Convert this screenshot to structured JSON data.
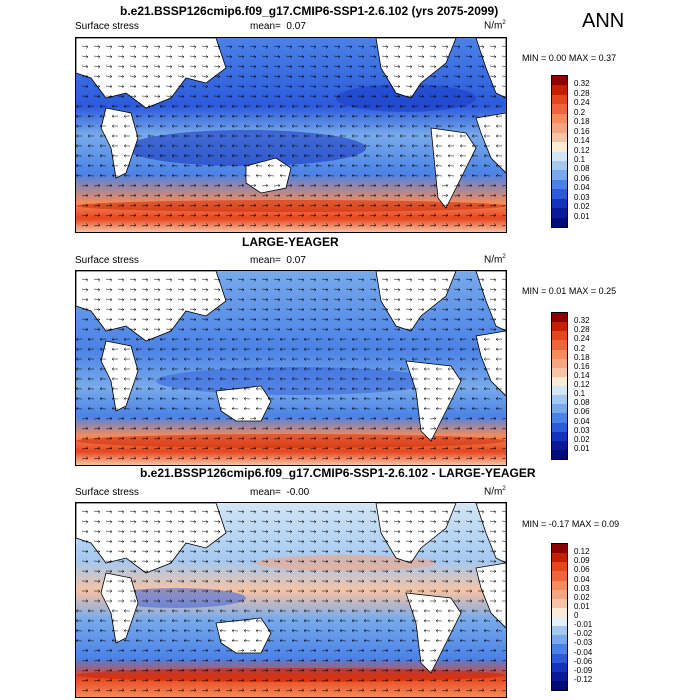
{
  "season": "ANN",
  "units_base": "N/m",
  "units_exp": "2",
  "panels": [
    {
      "title": "b.e21.BSSP126cmip6.f09_g17.CMIP6-SSP1-2.6.102 (yrs 2075-2099)",
      "variable": "Surface stress",
      "mean_label": "mean=",
      "mean": "0.07",
      "min_label": "MIN =",
      "min": "0.00",
      "max_label": "MAX =",
      "max": "0.37",
      "levels": [
        "0.32",
        "0.28",
        "0.24",
        "0.2",
        "0.18",
        "0.16",
        "0.14",
        "0.12",
        "0.1",
        "0.08",
        "0.06",
        "0.04",
        "0.03",
        "0.02",
        "0.01"
      ],
      "colors": [
        "#8c0000",
        "#c81e00",
        "#e6461e",
        "#f0643c",
        "#f58c5a",
        "#f5a582",
        "#f5c3a5",
        "#faebd7",
        "#d2e6f5",
        "#a5c8f0",
        "#78aaeb",
        "#4b82e6",
        "#2d5adc",
        "#1432be",
        "#0a1996",
        "#000a78"
      ]
    },
    {
      "title": "LARGE-YEAGER",
      "variable": "Surface stress",
      "mean_label": "mean=",
      "mean": "0.07",
      "min_label": "MIN =",
      "min": "0.01",
      "max_label": "MAX =",
      "max": "0.25",
      "levels": [
        "0.32",
        "0.28",
        "0.24",
        "0.2",
        "0.18",
        "0.16",
        "0.14",
        "0.12",
        "0.1",
        "0.08",
        "0.06",
        "0.04",
        "0.03",
        "0.02",
        "0.01"
      ],
      "colors": [
        "#8c0000",
        "#c81e00",
        "#e6461e",
        "#f0643c",
        "#f58c5a",
        "#f5a582",
        "#f5c3a5",
        "#faebd7",
        "#d2e6f5",
        "#a5c8f0",
        "#78aaeb",
        "#4b82e6",
        "#2d5adc",
        "#1432be",
        "#0a1996",
        "#000a78"
      ]
    },
    {
      "title": "b.e21.BSSP126cmip6.f09_g17.CMIP6-SSP1-2.6.102 - LARGE-YEAGER",
      "variable": "Surface stress",
      "mean_label": "mean=",
      "mean": "-0.00",
      "min_label": "MIN =",
      "min": "-0.17",
      "max_label": "MAX =",
      "max": "0.09",
      "levels": [
        "0.12",
        "0.09",
        "0.06",
        "0.04",
        "0.03",
        "0.02",
        "0.01",
        "0",
        "-0.01",
        "-0.02",
        "-0.03",
        "-0.04",
        "-0.06",
        "-0.09",
        "-0.12"
      ],
      "colors": [
        "#8c0000",
        "#c81e00",
        "#e6461e",
        "#f0643c",
        "#f58c5a",
        "#f5a582",
        "#f5c3a5",
        "#faebd7",
        "#e6f0fa",
        "#a5c8f0",
        "#78aaeb",
        "#4b82e6",
        "#2d5adc",
        "#1432be",
        "#0a1996",
        "#000a78"
      ]
    }
  ],
  "chart_data": [
    {
      "type": "heatmap",
      "title": "b.e21.BSSP126cmip6.f09_g17.CMIP6-SSP1-2.6.102 (yrs 2075-2099)",
      "variable": "Surface stress",
      "units": "N/m2",
      "mean": 0.07,
      "min": 0.0,
      "max": 0.37,
      "contour_levels": [
        0.01,
        0.02,
        0.03,
        0.04,
        0.06,
        0.08,
        0.1,
        0.12,
        0.14,
        0.16,
        0.18,
        0.2,
        0.24,
        0.28,
        0.32
      ]
    },
    {
      "type": "heatmap",
      "title": "LARGE-YEAGER",
      "variable": "Surface stress",
      "units": "N/m2",
      "mean": 0.07,
      "min": 0.01,
      "max": 0.25,
      "contour_levels": [
        0.01,
        0.02,
        0.03,
        0.04,
        0.06,
        0.08,
        0.1,
        0.12,
        0.14,
        0.16,
        0.18,
        0.2,
        0.24,
        0.28,
        0.32
      ]
    },
    {
      "type": "heatmap",
      "title": "b.e21.BSSP126cmip6.f09_g17.CMIP6-SSP1-2.6.102 - LARGE-YEAGER",
      "variable": "Surface stress",
      "units": "N/m2",
      "mean": -0.0,
      "min": -0.17,
      "max": 0.09,
      "contour_levels": [
        -0.12,
        -0.09,
        -0.06,
        -0.04,
        -0.03,
        -0.02,
        -0.01,
        0,
        0.01,
        0.02,
        0.03,
        0.04,
        0.06,
        0.09,
        0.12
      ]
    }
  ]
}
